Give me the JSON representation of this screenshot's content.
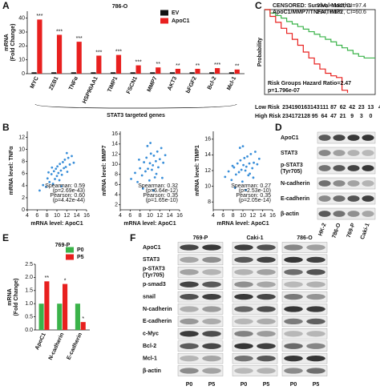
{
  "panels": [
    "A",
    "B",
    "C",
    "D",
    "E",
    "F"
  ],
  "chart_data": [
    {
      "type": "bar",
      "title": "786-O",
      "ylabel": [
        "mRNA",
        "(Fold Change)"
      ],
      "xlabel": "STAT3 targeted genes",
      "categories": [
        "MYC",
        "ZEB1",
        "TNFα",
        "HSP90AA1",
        "TIMP1",
        "FSCN1",
        "MMP7",
        "AKT3",
        "bFGF2",
        "Bcl-2",
        "Mcl-1"
      ],
      "series": [
        {
          "name": "EV",
          "color": "#111111",
          "values": [
            1,
            1,
            1,
            1,
            1,
            1,
            1,
            1,
            1,
            1,
            1
          ]
        },
        {
          "name": "ApoC1",
          "color": "#e8201f",
          "values": [
            39,
            28,
            23,
            13,
            13.5,
            6,
            4.5,
            3.5,
            3.5,
            4,
            3
          ]
        }
      ],
      "annotations": [
        "***",
        "***",
        "***",
        "***",
        "***",
        "***",
        "**",
        "**",
        "**",
        "***",
        "**"
      ],
      "ylim": [
        0,
        45
      ],
      "yticks": [
        0,
        10,
        20,
        30,
        40
      ]
    },
    {
      "type": "line",
      "title": "CENSORED: Survival Months",
      "subtitle": "ApoC1/MMP7/TNFA/TIMP1",
      "ylabel": "Probability",
      "annotations": [
        "Risk Groups Hazard Ratio=2.47",
        "p=1.796e-07"
      ],
      "xlim": [
        0,
        200
      ],
      "ylim": [
        0,
        1
      ],
      "series": [
        {
          "name": "234, +:162, CI=97.4",
          "color": "#3bb34a",
          "x": [
            0,
            10,
            20,
            30,
            40,
            50,
            60,
            70,
            80,
            90,
            100,
            110,
            120,
            130,
            140,
            150,
            160,
            170,
            180,
            190,
            200
          ],
          "values": [
            1,
            0.96,
            0.93,
            0.9,
            0.86,
            0.83,
            0.8,
            0.77,
            0.74,
            0.71,
            0.68,
            0.65,
            0.62,
            0.58,
            0.55,
            0.52,
            0.48,
            0.45,
            0.43,
            0.43,
            0.43
          ]
        },
        {
          "name": "234, +:132, CI=60.6",
          "color": "#e8201f",
          "x": [
            0,
            10,
            20,
            30,
            40,
            50,
            60,
            70,
            80,
            90,
            100,
            110,
            120,
            130,
            140,
            150
          ],
          "values": [
            1,
            0.92,
            0.85,
            0.78,
            0.72,
            0.65,
            0.58,
            0.5,
            0.43,
            0.36,
            0.3,
            0.25,
            0.22,
            0.2,
            0.05,
            0.02
          ]
        }
      ],
      "risk_table": [
        {
          "name": "Low Risk",
          "color": "#3bb34a",
          "counts": [
            234,
            190,
            163,
            143,
            111,
            87,
            62,
            42,
            23,
            13,
            4
          ]
        },
        {
          "name": "High Risk",
          "color": "#e8201f",
          "counts": [
            234,
            172,
            128,
            95,
            64,
            47,
            21,
            9,
            3,
            0
          ]
        }
      ]
    },
    {
      "type": "scatter",
      "xlabel": "mRNA level: ApoC1",
      "ylabel": "mRNA level: TNFα",
      "color": "#3a8fd9",
      "annotations": [
        "Spearman: 0.59",
        "(p=2.69e-43)",
        "Pearson: 0.60",
        "(p=4.42e-44)"
      ],
      "xlim": [
        4,
        16
      ],
      "xticks": [
        4,
        6,
        8,
        10,
        12,
        14,
        16
      ],
      "ylim": [
        0,
        13
      ],
      "yticks": [
        0,
        2,
        4,
        6,
        8,
        10,
        12
      ],
      "x": [
        6.5,
        7.2,
        7.8,
        8.1,
        8.5,
        8.9,
        9.2,
        9.4,
        9.6,
        9.8,
        10.0,
        10.1,
        10.3,
        10.5,
        10.6,
        10.8,
        11.0,
        11.2,
        11.4,
        11.6,
        11.8,
        12.1,
        12.3,
        12.6,
        13.0,
        13.4,
        9.0,
        8.3,
        10.9,
        12.0
      ],
      "values": [
        3.2,
        4.1,
        3.8,
        5.2,
        4.6,
        5.9,
        4.3,
        6.4,
        5.1,
        6.8,
        5.6,
        7.2,
        6.1,
        4.9,
        7.6,
        6.5,
        5.8,
        7.9,
        6.9,
        8.3,
        7.1,
        6.3,
        8.6,
        7.5,
        8.9,
        7.8,
        7.0,
        6.2,
        3.9,
        9.4
      ]
    },
    {
      "type": "scatter",
      "xlabel": "mRNA level: ApoC1",
      "ylabel": "mRNA level: MMP7",
      "color": "#3a8fd9",
      "annotations": [
        "Spearman: 0.32",
        "(p=6.64e-12)",
        "Pearson: 0.35",
        "(p=1.65e-10)"
      ],
      "xlim": [
        4,
        16
      ],
      "xticks": [
        4,
        6,
        8,
        10,
        12,
        14,
        16
      ],
      "ylim": [
        1,
        16.5
      ],
      "yticks": [
        2,
        4,
        6,
        8,
        10,
        12,
        14,
        16
      ],
      "x": [
        6.2,
        7.0,
        7.5,
        8.0,
        8.4,
        8.8,
        9.1,
        9.3,
        9.6,
        9.9,
        10.0,
        10.2,
        10.4,
        10.6,
        10.8,
        11.0,
        11.2,
        11.5,
        11.7,
        12.0,
        12.3,
        12.7,
        13.1,
        8.6,
        9.5,
        10.7,
        11.3,
        7.8,
        12.5,
        10.1
      ],
      "values": [
        7.1,
        8.3,
        6.5,
        9.2,
        7.8,
        10.4,
        8.6,
        11.3,
        9.1,
        6.8,
        10.2,
        12.1,
        8.9,
        9.8,
        11.7,
        7.4,
        10.6,
        12.5,
        9.4,
        11.0,
        13.2,
        10.3,
        11.8,
        5.2,
        13.6,
        4.8,
        8.1,
        10.9,
        7.3,
        14.2
      ]
    },
    {
      "type": "scatter",
      "xlabel": "mRNA level: ApoC1",
      "ylabel": "mRNA level: TIMP1",
      "color": "#3a8fd9",
      "annotations": [
        "Spearman: 0.27",
        "(p=2.53e-10)",
        "Pearson: 0.35",
        "(p=2.05e-14)"
      ],
      "xlim": [
        4,
        16
      ],
      "xticks": [
        4,
        6,
        8,
        10,
        12,
        14,
        16
      ],
      "ylim": [
        7,
        17
      ],
      "yticks": [
        8,
        10,
        12,
        14,
        16
      ],
      "x": [
        6.4,
        7.1,
        7.7,
        8.2,
        8.6,
        8.9,
        9.2,
        9.5,
        9.7,
        9.9,
        10.1,
        10.3,
        10.5,
        10.7,
        10.9,
        11.1,
        11.3,
        11.6,
        11.9,
        12.2,
        12.5,
        12.9,
        13.3,
        8.4,
        9.4,
        10.6,
        11.4,
        7.9,
        12.1,
        10.0
      ],
      "values": [
        11.2,
        11.9,
        10.8,
        12.4,
        11.5,
        12.9,
        11.8,
        13.3,
        12.1,
        10.6,
        12.7,
        13.6,
        12.0,
        12.5,
        13.8,
        11.4,
        12.9,
        14.1,
        12.3,
        13.0,
        14.4,
        12.8,
        13.5,
        9.8,
        14.9,
        9.5,
        11.6,
        12.6,
        11.1,
        15.1
      ]
    },
    {
      "type": "bar",
      "title": "769-P",
      "ylabel": [
        "mRNA",
        "(Fold Change)"
      ],
      "categories": [
        "ApoC1",
        "N-cadherin",
        "E-cadherin"
      ],
      "series": [
        {
          "name": "P0",
          "color": "#3bb34a",
          "values": [
            1,
            1,
            1
          ]
        },
        {
          "name": "P5",
          "color": "#e8201f",
          "values": [
            1.85,
            1.75,
            0.3
          ]
        }
      ],
      "annotations": [
        "**",
        "*",
        "*"
      ],
      "ylim": [
        0,
        2.5
      ],
      "yticks": [
        {
          "value": 0,
          "label": "0.0"
        },
        0.5,
        {
          "value": 1,
          "label": "1.0"
        },
        1.5,
        {
          "value": 2,
          "label": "2.0"
        },
        2.5
      ]
    }
  ],
  "blot_d": {
    "rows": [
      "ApoC1",
      "STAT3",
      [
        "p-STAT3",
        "(Tyr705)"
      ],
      "N-cadherin",
      "E-cadherin",
      "β-actin"
    ],
    "lanes": [
      "HK-2",
      "786-O",
      "769-P",
      "Caki-1"
    ]
  },
  "blot_f": {
    "groups": [
      "769-P",
      "Caki-1",
      "786-O"
    ],
    "lanes": [
      "P0",
      "P5"
    ],
    "rows": [
      "ApoC1",
      "STAT3",
      [
        "p-STAT3",
        "(Tyr705)"
      ],
      "p-smad3",
      "snail",
      "N-cadherin",
      "E-cadherin",
      "c-Myc",
      "Bcl-2",
      "Mcl-1",
      "β-actin"
    ]
  }
}
